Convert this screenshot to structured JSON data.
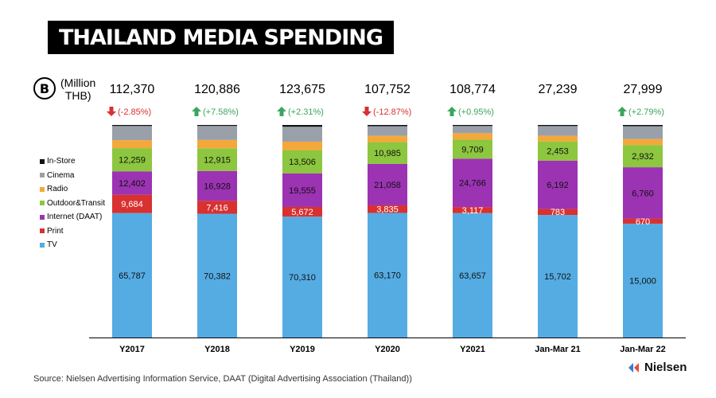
{
  "header": {
    "title": "THAILAND MEDIA SPENDING"
  },
  "unit": {
    "icon_letter": "B",
    "label_line1": "(Million",
    "label_line2": "THB)"
  },
  "chart_data": {
    "type": "bar",
    "stacked": true,
    "categories": [
      "Y2017",
      "Y2018",
      "Y2019",
      "Y2020",
      "Y2021",
      "Jan-Mar 21",
      "Jan-Mar 22"
    ],
    "totals": [
      "112,370",
      "120,886",
      "123,675",
      "107,752",
      "108,774",
      "27,239",
      "27,999"
    ],
    "changes": [
      {
        "text": "(-2.85%)",
        "dir": "down"
      },
      {
        "text": "(+7.58%)",
        "dir": "up"
      },
      {
        "text": "(+2.31%)",
        "dir": "up"
      },
      {
        "text": "(-12.87%)",
        "dir": "down"
      },
      {
        "text": "(+0.95%)",
        "dir": "up"
      },
      {
        "text": "",
        "dir": ""
      },
      {
        "text": "(+2.79%)",
        "dir": "up"
      }
    ],
    "series": [
      {
        "name": "TV",
        "color": "#55ACE3",
        "values": [
          65787,
          70382,
          70310,
          63170,
          63657,
          15702,
          15000
        ],
        "labels": [
          "65,787",
          "70,382",
          "70,310",
          "63,170",
          "63,657",
          "15,702",
          "15,000"
        ]
      },
      {
        "name": "Print",
        "color": "#D93030",
        "values": [
          9684,
          7416,
          5672,
          3835,
          3117,
          783,
          670
        ],
        "labels": [
          "9,684",
          "7,416",
          "5,672",
          "3,835",
          "3,117",
          "783",
          "670"
        ]
      },
      {
        "name": "Internet (DAAT)",
        "color": "#9B33B3",
        "values": [
          12402,
          16928,
          19555,
          21058,
          24766,
          6192,
          6760
        ],
        "labels": [
          "12,402",
          "16,928",
          "19,555",
          "21,058",
          "24,766",
          "6,192",
          "6,760"
        ]
      },
      {
        "name": "Outdoor&Transit",
        "color": "#8DC63F",
        "values": [
          12259,
          12915,
          13506,
          10985,
          9709,
          2453,
          2932
        ],
        "labels": [
          "12,259",
          "12,915",
          "13,506",
          "10,985",
          "9,709",
          "2,453",
          "2,932"
        ]
      },
      {
        "name": "Radio",
        "color": "#F5A83A",
        "values": [
          4200,
          4700,
          4900,
          3200,
          3300,
          720,
          780
        ],
        "labels": [
          "",
          "",
          "",
          "",
          "",
          "",
          ""
        ]
      },
      {
        "name": "Cinema",
        "color": "#9AA0AA",
        "values": [
          7500,
          8000,
          8700,
          4900,
          3700,
          1250,
          1700
        ],
        "labels": [
          "",
          "",
          "",
          "",
          "",
          "",
          ""
        ]
      },
      {
        "name": "In-Store",
        "color": "#111111",
        "values": [
          538,
          545,
          1032,
          604,
          525,
          139,
          157
        ],
        "labels": [
          "",
          "",
          "",
          "",
          "",
          "",
          ""
        ]
      }
    ],
    "legend_order": [
      "In-Store",
      "Cinema",
      "Radio",
      "Outdoor&Transit",
      "Internet (DAAT)",
      "Print",
      "TV"
    ],
    "legend_position": "left",
    "up_color": "#3BA55C",
    "down_color": "#D93030"
  },
  "footer": {
    "source": "Source: Nielsen Advertising Information Service, DAAT (Digital Advertising Association (Thailand))",
    "logo_text": "Nielsen"
  }
}
